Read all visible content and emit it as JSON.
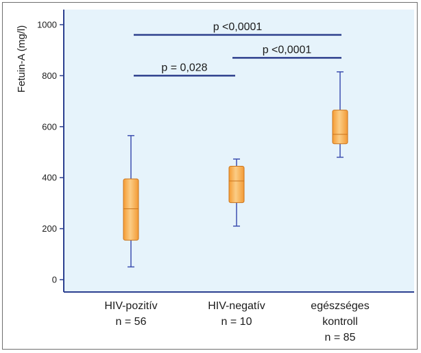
{
  "chart_data": {
    "type": "boxplot",
    "ylabel": "Fetuin-A (mg/l)",
    "ylim": [
      0,
      1000
    ],
    "yticks": [
      0,
      200,
      400,
      600,
      800,
      1000
    ],
    "categories": [
      {
        "lines": [
          "HIV-pozitív",
          "n = 56"
        ]
      },
      {
        "lines": [
          "HIV-negatív",
          "n = 10"
        ]
      },
      {
        "lines": [
          "egészséges",
          "kontroll",
          "n = 85"
        ]
      }
    ],
    "boxes": [
      {
        "min": 50,
        "q1": 155,
        "median": 278,
        "q3": 395,
        "max": 565
      },
      {
        "min": 210,
        "q1": 302,
        "median": 387,
        "q3": 445,
        "max": 473
      },
      {
        "min": 480,
        "q1": 533,
        "median": 570,
        "q3": 665,
        "max": 815
      }
    ],
    "comparisons": [
      {
        "from": 0,
        "to": 1,
        "y": 800,
        "label": "p = 0,028"
      },
      {
        "from": 1,
        "to": 2,
        "y": 870,
        "label": "p <0,0001"
      },
      {
        "from": 0,
        "to": 2,
        "y": 960,
        "label": "p <0,0001"
      }
    ],
    "colors": {
      "plot_bg": "#e6f3fb",
      "axis": "#2b3f8f",
      "box_fill": "#f7a94a",
      "box_stroke": "#c9741d",
      "whisker": "#3d4fb0",
      "bracket": "#2c3e8c"
    }
  }
}
